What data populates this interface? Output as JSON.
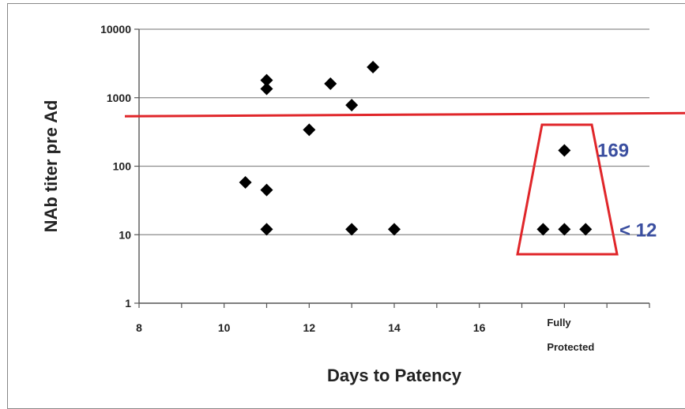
{
  "chart_data": {
    "type": "scatter",
    "title": "",
    "xlabel": "Days to Patency",
    "ylabel": "NAb titer pre Ad",
    "yscale": "log",
    "xlim": [
      8,
      20
    ],
    "ylim": [
      1,
      10000
    ],
    "x_ticks": [
      "8",
      "10",
      "12",
      "14",
      "16"
    ],
    "y_ticks": [
      "1",
      "10",
      "100",
      "1000",
      "10000"
    ],
    "grid": true,
    "marker": "diamond",
    "marker_color": "#000000",
    "series": [
      {
        "points": [
          {
            "x": 10.5,
            "y": 58
          },
          {
            "x": 11,
            "y": 1800
          },
          {
            "x": 11,
            "y": 1350
          },
          {
            "x": 11,
            "y": 45
          },
          {
            "x": 11,
            "y": 12
          },
          {
            "x": 12,
            "y": 340
          },
          {
            "x": 12.5,
            "y": 1600
          },
          {
            "x": 13,
            "y": 780
          },
          {
            "x": 13,
            "y": 12
          },
          {
            "x": 13.5,
            "y": 2800
          },
          {
            "x": 14,
            "y": 12
          }
        ]
      }
    ],
    "fully_protected": {
      "label_line1": "Fully",
      "label_line2": "Protected",
      "x_position": 18,
      "points": [
        {
          "x": 18,
          "y": 170
        },
        {
          "x": 17.5,
          "y": 12
        },
        {
          "x": 18,
          "y": 12
        },
        {
          "x": 18.5,
          "y": 12
        }
      ],
      "annotations": [
        "169",
        "< 12"
      ],
      "annotation_color": "#3B4FA0",
      "box_color": "#E0262A"
    },
    "threshold": {
      "y": 550,
      "color": "#E0262A"
    }
  }
}
